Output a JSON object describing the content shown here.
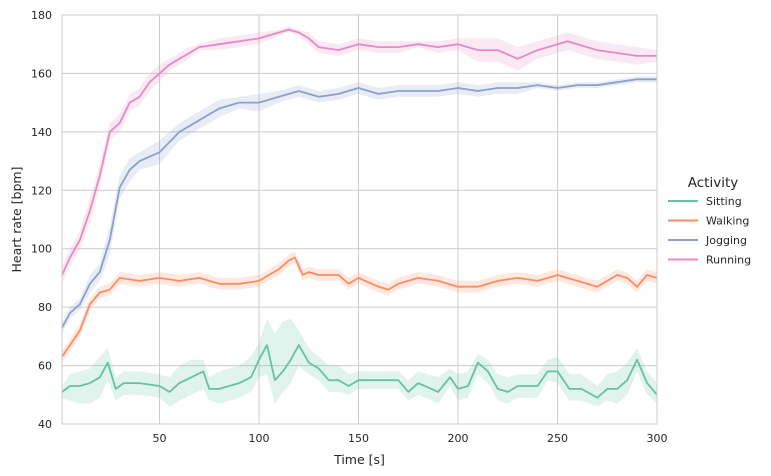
{
  "chart_data": {
    "type": "line",
    "xlabel": "Time [s]",
    "ylabel": "Heart rate [bpm]",
    "xlim": [
      1,
      300
    ],
    "ylim": [
      40,
      180
    ],
    "xticks": [
      50,
      100,
      150,
      200,
      250,
      300
    ],
    "yticks": [
      40,
      60,
      80,
      100,
      120,
      140,
      160,
      180
    ],
    "grid": true,
    "legend": {
      "title": "Activity",
      "placement": "right"
    },
    "series": [
      {
        "name": "Sitting",
        "color": "#66c2a5",
        "x": [
          1,
          5,
          10,
          15,
          20,
          24,
          28,
          32,
          40,
          50,
          55,
          60,
          66,
          72,
          75,
          80,
          90,
          96,
          100,
          104,
          108,
          112,
          116,
          120,
          125,
          130,
          135,
          140,
          145,
          150,
          160,
          170,
          175,
          180,
          190,
          196,
          200,
          205,
          210,
          215,
          220,
          225,
          230,
          240,
          245,
          250,
          256,
          262,
          270,
          275,
          280,
          285,
          290,
          295,
          300
        ],
        "y": [
          51,
          53,
          53,
          54,
          56,
          61,
          52,
          54,
          54,
          53,
          51,
          54,
          56,
          58,
          52,
          52,
          54,
          56,
          62,
          67,
          55,
          58,
          62,
          67,
          61,
          59,
          55,
          55,
          53,
          55,
          55,
          55,
          51,
          54,
          51,
          56,
          52,
          53,
          61,
          58,
          52,
          51,
          53,
          53,
          58,
          58,
          52,
          52,
          49,
          52,
          52,
          55,
          62,
          54,
          50
        ],
        "upper": [
          53,
          57,
          58,
          59,
          63,
          66,
          56,
          58,
          58,
          57,
          56,
          60,
          62,
          62,
          56,
          58,
          60,
          63,
          68,
          76,
          71,
          75,
          76,
          72,
          66,
          63,
          60,
          60,
          57,
          58,
          58,
          58,
          55,
          58,
          56,
          59,
          57,
          58,
          64,
          62,
          57,
          56,
          57,
          57,
          62,
          63,
          57,
          57,
          53,
          57,
          58,
          61,
          66,
          58,
          54
        ],
        "lower": [
          49,
          48,
          47,
          47,
          49,
          55,
          48,
          50,
          50,
          49,
          46,
          48,
          50,
          52,
          48,
          47,
          49,
          51,
          56,
          57,
          47,
          51,
          54,
          60,
          57,
          55,
          51,
          51,
          50,
          52,
          52,
          52,
          48,
          50,
          47,
          53,
          48,
          49,
          57,
          54,
          48,
          47,
          49,
          49,
          55,
          54,
          48,
          48,
          46,
          48,
          47,
          50,
          58,
          50,
          47
        ]
      },
      {
        "name": "Walking",
        "color": "#fc8d62",
        "x": [
          1,
          5,
          10,
          15,
          20,
          25,
          30,
          40,
          50,
          60,
          70,
          80,
          90,
          100,
          105,
          110,
          115,
          118,
          122,
          125,
          130,
          140,
          145,
          150,
          160,
          165,
          170,
          180,
          190,
          200,
          210,
          220,
          230,
          240,
          250,
          260,
          270,
          280,
          285,
          290,
          295,
          300
        ],
        "y": [
          63,
          67,
          72,
          81,
          85,
          86,
          90,
          89,
          90,
          89,
          90,
          88,
          88,
          89,
          91,
          93,
          96,
          97,
          91,
          92,
          91,
          91,
          88,
          90,
          87,
          86,
          88,
          90,
          89,
          87,
          87,
          89,
          90,
          89,
          91,
          89,
          87,
          91,
          90,
          87,
          91,
          90
        ],
        "upper": [
          65,
          69,
          74,
          83,
          87,
          88,
          92,
          91,
          92,
          91,
          92,
          90,
          90,
          91,
          93,
          95,
          98,
          99,
          93,
          94,
          93,
          93,
          90,
          92,
          89,
          88,
          90,
          92,
          91,
          89,
          89,
          91,
          92,
          91,
          93,
          91,
          89,
          93,
          92,
          89,
          93,
          92
        ],
        "lower": [
          61,
          65,
          70,
          79,
          83,
          84,
          88,
          87,
          88,
          87,
          88,
          86,
          86,
          87,
          89,
          91,
          94,
          95,
          89,
          90,
          89,
          89,
          86,
          88,
          85,
          84,
          86,
          88,
          87,
          85,
          85,
          87,
          88,
          87,
          89,
          87,
          85,
          89,
          88,
          85,
          89,
          88
        ]
      },
      {
        "name": "Jogging",
        "color": "#8da0cb",
        "x": [
          1,
          5,
          10,
          15,
          20,
          25,
          30,
          35,
          40,
          50,
          60,
          70,
          80,
          90,
          100,
          110,
          120,
          130,
          140,
          150,
          160,
          170,
          180,
          190,
          200,
          210,
          220,
          230,
          240,
          250,
          260,
          270,
          280,
          290,
          300
        ],
        "y": [
          73,
          78,
          81,
          88,
          92,
          103,
          121,
          127,
          130,
          133,
          140,
          144,
          148,
          150,
          150,
          152,
          154,
          152,
          153,
          155,
          153,
          154,
          154,
          154,
          155,
          154,
          155,
          155,
          156,
          155,
          156,
          156,
          157,
          158,
          158
        ],
        "upper": [
          75,
          80,
          83,
          91,
          95,
          108,
          125,
          131,
          133,
          137,
          143,
          147,
          151,
          152,
          153,
          154,
          156,
          154,
          155,
          157,
          155,
          156,
          156,
          156,
          157,
          156,
          157,
          157,
          157,
          156,
          157,
          157,
          158,
          159,
          159
        ],
        "lower": [
          71,
          76,
          79,
          85,
          89,
          98,
          117,
          123,
          127,
          129,
          137,
          141,
          145,
          148,
          147,
          150,
          152,
          150,
          151,
          153,
          151,
          152,
          152,
          152,
          153,
          152,
          153,
          153,
          155,
          154,
          155,
          155,
          156,
          157,
          157
        ]
      },
      {
        "name": "Running",
        "color": "#e78ac3",
        "x": [
          1,
          5,
          10,
          15,
          20,
          25,
          30,
          35,
          40,
          45,
          50,
          55,
          60,
          65,
          70,
          80,
          90,
          100,
          110,
          115,
          120,
          125,
          130,
          140,
          150,
          160,
          170,
          180,
          190,
          200,
          210,
          220,
          230,
          240,
          250,
          255,
          260,
          270,
          280,
          290,
          300
        ],
        "y": [
          91,
          97,
          103,
          113,
          125,
          140,
          143,
          150,
          152,
          157,
          160,
          163,
          165,
          167,
          169,
          170,
          171,
          172,
          174,
          175,
          174,
          172,
          169,
          168,
          170,
          169,
          169,
          170,
          169,
          170,
          168,
          168,
          165,
          168,
          170,
          171,
          170,
          168,
          167,
          166,
          166
        ],
        "upper": [
          94,
          100,
          106,
          117,
          129,
          143,
          146,
          153,
          155,
          160,
          163,
          165,
          167,
          169,
          170,
          172,
          173,
          174,
          175,
          176,
          175,
          174,
          171,
          170,
          172,
          171,
          171,
          171,
          171,
          172,
          172,
          172,
          169,
          171,
          173,
          174,
          173,
          171,
          170,
          169,
          168
        ],
        "lower": [
          88,
          94,
          100,
          109,
          121,
          137,
          140,
          147,
          149,
          154,
          157,
          161,
          163,
          165,
          168,
          168,
          169,
          170,
          173,
          174,
          173,
          170,
          167,
          166,
          168,
          167,
          167,
          169,
          167,
          168,
          164,
          164,
          161,
          165,
          167,
          168,
          167,
          165,
          164,
          163,
          164
        ]
      }
    ]
  }
}
